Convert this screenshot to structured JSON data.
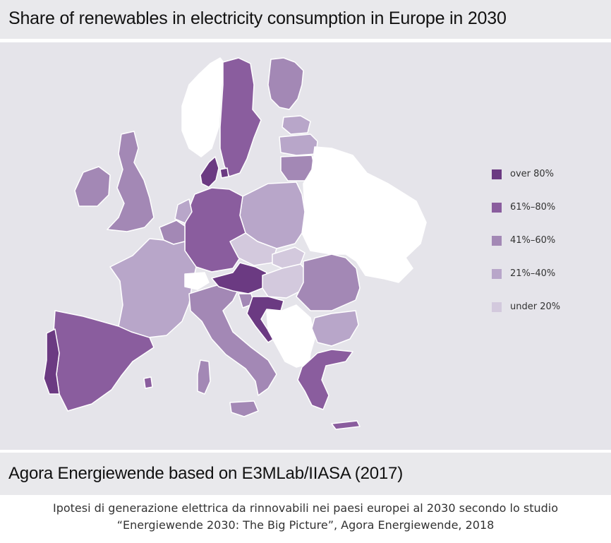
{
  "title": "Share of renewables in electricity consumption in Europe in 2030",
  "source": "Agora Energiewende based on E3MLab/IIASA (2017)",
  "caption": {
    "line1": "Ipotesi di generazione elettrica da rinnovabili nei paesi europei al 2030 secondo lo studio",
    "line2": "“Energiewende 2030: The Big Picture”, Agora Energiewende, 2018"
  },
  "legend": [
    {
      "label": "over 80%",
      "color": "#6b3a82"
    },
    {
      "label": "61%–80%",
      "color": "#8a5d9e"
    },
    {
      "label": "41%–60%",
      "color": "#a388b5"
    },
    {
      "label": "21%–40%",
      "color": "#b8a6c9"
    },
    {
      "label": "under 20%",
      "color": "#d3c9dd"
    }
  ],
  "colors": {
    "background": "#e5e4ea",
    "non_eu": "#ffffff",
    "border": "#ffffff"
  }
}
